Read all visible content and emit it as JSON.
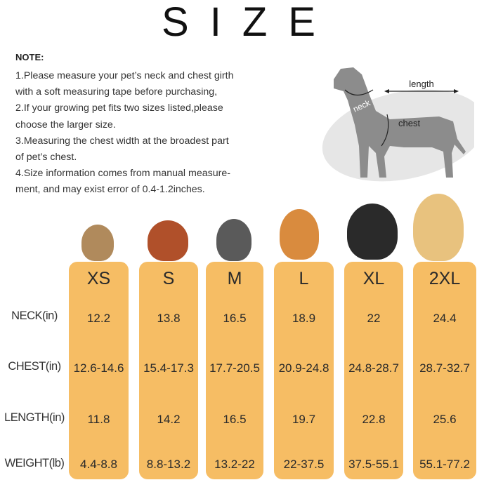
{
  "title": "SIZE",
  "note": {
    "heading": "NOTE:",
    "lines": [
      "1.Please measure your pet’s neck and chest girth",
      "with a soft measuring tape before purchasing,",
      "2.If your growing pet fits two sizes listed,please",
      "choose the larger size.",
      "3.Measuring the chest width at the broadest part",
      "of pet’s chest.",
      "4.Size information comes from manual measure-",
      "ment, and may exist error of 0.4-1.2inches."
    ]
  },
  "diagram": {
    "length": "length",
    "neck": "neck",
    "chest": "chest"
  },
  "table": {
    "accent": "#F6BD64",
    "row_labels": [
      "NECK(in)",
      "CHEST(in)",
      "LENGTH(in)",
      "WEIGHT(lb)"
    ],
    "sizes": [
      {
        "size": "XS",
        "neck": "12.2",
        "chest": "12.6-14.6",
        "length": "11.8",
        "weight": "4.4-8.8"
      },
      {
        "size": "S",
        "neck": "13.8",
        "chest": "15.4-17.3",
        "length": "14.2",
        "weight": "8.8-13.2"
      },
      {
        "size": "M",
        "neck": "16.5",
        "chest": "17.7-20.5",
        "length": "16.5",
        "weight": "13.2-22"
      },
      {
        "size": "L",
        "neck": "18.9",
        "chest": "20.9-24.8",
        "length": "19.7",
        "weight": "22-37.5"
      },
      {
        "size": "XL",
        "neck": "22",
        "chest": "24.8-28.7",
        "length": "22.8",
        "weight": "37.5-55.1"
      },
      {
        "size": "2XL",
        "neck": "24.4",
        "chest": "28.7-32.7",
        "length": "25.6",
        "weight": "55.1-77.2"
      }
    ]
  }
}
